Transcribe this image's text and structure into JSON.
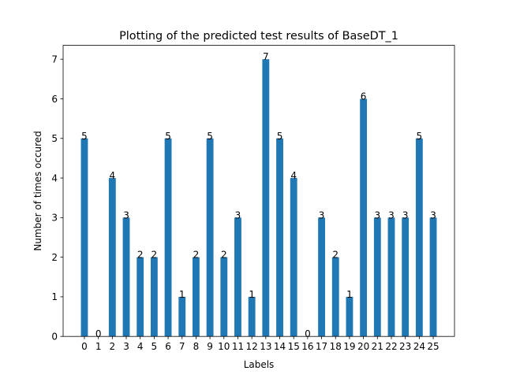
{
  "chart_data": {
    "type": "bar",
    "title": "Plotting of the predicted test results of BaseDT_1",
    "xlabel": "Labels",
    "ylabel": "Number of times occured",
    "categories": [
      "0",
      "1",
      "2",
      "3",
      "4",
      "5",
      "6",
      "7",
      "8",
      "9",
      "10",
      "11",
      "12",
      "13",
      "14",
      "15",
      "16",
      "17",
      "18",
      "19",
      "20",
      "21",
      "22",
      "23",
      "24",
      "25"
    ],
    "values": [
      5,
      0,
      4,
      3,
      2,
      2,
      5,
      1,
      2,
      5,
      2,
      3,
      1,
      7,
      5,
      4,
      0,
      3,
      2,
      1,
      6,
      3,
      3,
      3,
      5,
      3
    ],
    "data_labels": true,
    "ylim": [
      0,
      7.35
    ],
    "yticks": [
      0,
      1,
      2,
      3,
      4,
      5,
      6,
      7
    ],
    "grid": false,
    "bar_color": "#1f77b4"
  }
}
